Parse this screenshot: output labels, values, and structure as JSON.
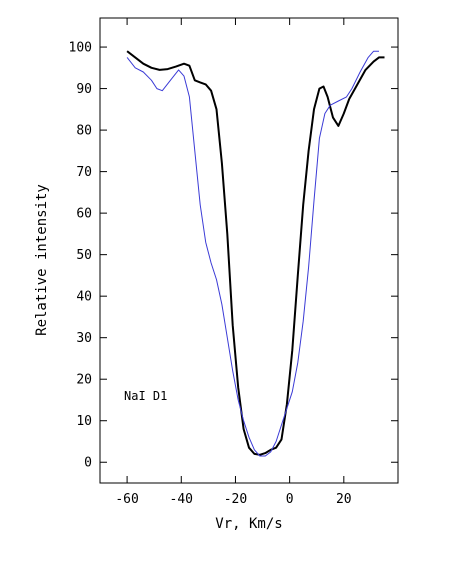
{
  "chart_data": {
    "type": "line",
    "xlabel": "Vr, Km/s",
    "ylabel": "Relative intensity",
    "xlim": [
      -70,
      40
    ],
    "ylim": [
      -5,
      107
    ],
    "x_ticks": [
      -60,
      -40,
      -20,
      0,
      20
    ],
    "y_ticks": [
      0,
      10,
      20,
      30,
      40,
      50,
      60,
      70,
      80,
      90,
      100
    ],
    "annotation": "NaI D1",
    "grid": false,
    "series": [
      {
        "color": "#000000",
        "points": [
          [
            -60,
            99
          ],
          [
            -57,
            97.5
          ],
          [
            -54,
            96
          ],
          [
            -51,
            95
          ],
          [
            -48,
            94.5
          ],
          [
            -45,
            94.7
          ],
          [
            -42,
            95.3
          ],
          [
            -39,
            96
          ],
          [
            -37,
            95.5
          ],
          [
            -35,
            92
          ],
          [
            -33,
            91.5
          ],
          [
            -31,
            91
          ],
          [
            -29,
            89.5
          ],
          [
            -27,
            85
          ],
          [
            -25,
            72
          ],
          [
            -23,
            55
          ],
          [
            -21,
            33
          ],
          [
            -19,
            18
          ],
          [
            -17,
            8
          ],
          [
            -15,
            3.5
          ],
          [
            -13,
            2
          ],
          [
            -11,
            1.8
          ],
          [
            -9,
            2.2
          ],
          [
            -7,
            3
          ],
          [
            -5,
            3.5
          ],
          [
            -3,
            5.5
          ],
          [
            -1,
            14
          ],
          [
            1,
            27
          ],
          [
            3,
            45
          ],
          [
            5,
            62
          ],
          [
            7,
            75
          ],
          [
            9,
            85
          ],
          [
            11,
            90
          ],
          [
            12.5,
            90.5
          ],
          [
            14,
            88
          ],
          [
            16,
            83
          ],
          [
            18,
            81
          ],
          [
            20,
            84
          ],
          [
            22,
            87.5
          ],
          [
            25,
            91
          ],
          [
            28,
            94.5
          ],
          [
            31,
            96.5
          ],
          [
            33,
            97.5
          ],
          [
            35,
            97.5
          ]
        ]
      },
      {
        "color": "#3b3bd6",
        "points": [
          [
            -60,
            97.5
          ],
          [
            -57,
            95
          ],
          [
            -54,
            94
          ],
          [
            -51,
            92
          ],
          [
            -49,
            90
          ],
          [
            -47,
            89.5
          ],
          [
            -44,
            92
          ],
          [
            -41,
            94.5
          ],
          [
            -39,
            93
          ],
          [
            -37,
            88
          ],
          [
            -35,
            75
          ],
          [
            -33,
            62
          ],
          [
            -31,
            53
          ],
          [
            -29,
            48
          ],
          [
            -27,
            44
          ],
          [
            -25,
            38
          ],
          [
            -23,
            30
          ],
          [
            -21,
            22
          ],
          [
            -19,
            15
          ],
          [
            -17,
            10
          ],
          [
            -15,
            6
          ],
          [
            -13,
            3
          ],
          [
            -11,
            1.5
          ],
          [
            -9,
            1.5
          ],
          [
            -7,
            2.5
          ],
          [
            -5,
            5
          ],
          [
            -3,
            9
          ],
          [
            -1,
            13
          ],
          [
            1,
            17
          ],
          [
            3,
            24
          ],
          [
            5,
            34
          ],
          [
            7,
            47
          ],
          [
            9,
            63
          ],
          [
            11,
            78
          ],
          [
            13,
            84
          ],
          [
            15,
            86
          ],
          [
            18,
            87
          ],
          [
            21,
            88
          ],
          [
            23,
            90
          ],
          [
            26,
            94
          ],
          [
            29,
            97.5
          ],
          [
            31,
            99
          ],
          [
            33,
            99
          ]
        ]
      }
    ]
  }
}
